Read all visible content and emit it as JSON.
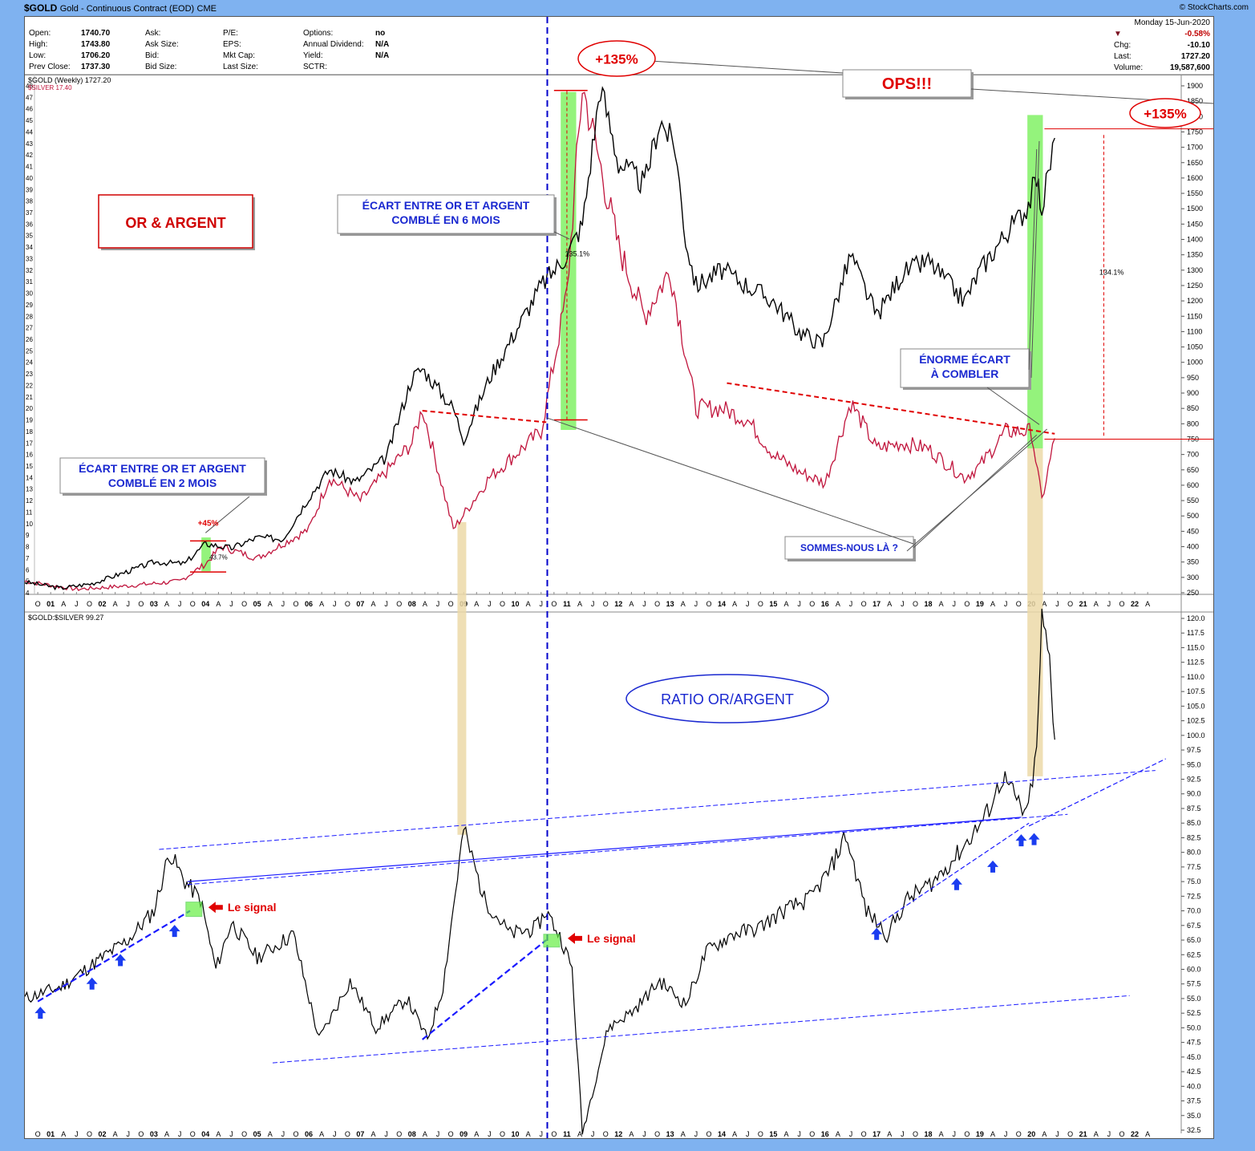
{
  "header": {
    "symbol": "$GOLD",
    "description": "Gold - Continuous Contract (EOD)",
    "exchange": "CME",
    "brand": "© StockCharts.com"
  },
  "quote": {
    "col1": [
      [
        "Open:",
        "1740.70"
      ],
      [
        "High:",
        "1743.80"
      ],
      [
        "Low:",
        "1706.20"
      ],
      [
        "Prev Close:",
        "1737.30"
      ]
    ],
    "col2": [
      [
        "Ask:",
        ""
      ],
      [
        "Ask Size:",
        ""
      ],
      [
        "Bid:",
        ""
      ],
      [
        "Bid Size:",
        ""
      ]
    ],
    "col3": [
      [
        "P/E:",
        ""
      ],
      [
        "EPS:",
        ""
      ],
      [
        "Mkt Cap:",
        ""
      ],
      [
        "Last Size:",
        ""
      ]
    ],
    "col4": [
      [
        "Options:",
        "no"
      ],
      [
        "Annual Dividend:",
        "N/A"
      ],
      [
        "Yield:",
        "N/A"
      ],
      [
        "SCTR:",
        ""
      ]
    ],
    "date": "Monday  15-Jun-2020",
    "pct_change": "-0.58%",
    "right": [
      [
        "Chg:",
        "-10.10"
      ],
      [
        "Last:",
        "1727.20"
      ],
      [
        "Volume:",
        "19,587,600"
      ]
    ]
  },
  "colors": {
    "gold": "#000000",
    "silver": "#c0143c",
    "ratio": "#000000",
    "trend": "#1a1aff",
    "accent_red": "#e00000",
    "green_box": "#66ee44",
    "tan_band": "#ecd9a8"
  },
  "annotations": {
    "title_box": "OR & ARGENT",
    "gap6": [
      "ÉCART ENTRE OR ET ARGENT",
      "COMBLÉ EN 6 MOIS"
    ],
    "gap2": [
      "ÉCART ENTRE OR ET ARGENT",
      "COMBLÉ EN 2 MOIS"
    ],
    "huge_gap": [
      "ÉNORME  ÉCART",
      "À COMBLER"
    ],
    "are_we_there": "SOMMES-NOUS LÀ ?",
    "ops": "OPS!!!",
    "plus135a": "+135%",
    "plus135b": "+135%",
    "plus45": "+45%",
    "pct_1351": "135.1%",
    "pct_437": "43.7%",
    "pct_1341": "134.1%",
    "ratio_title": "RATIO OR/ARGENT",
    "signal1": "Le signal",
    "signal2": "Le signal"
  },
  "chart_data": [
    {
      "type": "line",
      "title": "$GOLD (Weekly) 1727.20",
      "series": [
        {
          "name": "$GOLD (Weekly) 1727.20",
          "x": [
            2000.5,
            2001.2,
            2001.8,
            2002.5,
            2003.0,
            2003.6,
            2004.0,
            2004.5,
            2005.0,
            2005.5,
            2006.0,
            2006.4,
            2006.9,
            2007.5,
            2008.0,
            2008.2,
            2008.8,
            2009.0,
            2009.5,
            2010.0,
            2010.5,
            2011.0,
            2011.3,
            2011.65,
            2012.0,
            2012.5,
            2012.8,
            2013.1,
            2013.3,
            2013.5,
            2014.0,
            2014.5,
            2015.0,
            2015.5,
            2015.95,
            2016.5,
            2017.0,
            2017.5,
            2018.0,
            2018.7,
            2019.0,
            2019.5,
            2019.9,
            2020.1,
            2020.2,
            2020.45
          ],
          "values": [
            285,
            265,
            280,
            320,
            350,
            345,
            410,
            395,
            430,
            425,
            560,
            650,
            610,
            690,
            950,
            980,
            850,
            750,
            950,
            1100,
            1250,
            1350,
            1450,
            1900,
            1650,
            1580,
            1790,
            1700,
            1400,
            1250,
            1300,
            1250,
            1200,
            1100,
            1060,
            1350,
            1150,
            1290,
            1330,
            1200,
            1300,
            1420,
            1500,
            1600,
            1500,
            1730
          ]
        },
        {
          "name": "$SILVER 17.40",
          "x": [
            2000.5,
            2001.5,
            2002.5,
            2003.5,
            2004.0,
            2004.3,
            2005.0,
            2006.0,
            2006.4,
            2007.0,
            2008.0,
            2008.2,
            2008.8,
            2009.5,
            2010.0,
            2010.5,
            2011.0,
            2011.3,
            2011.7,
            2012.0,
            2012.5,
            2013.0,
            2013.5,
            2014.0,
            2014.5,
            2015.0,
            2015.5,
            2016.0,
            2016.5,
            2017.0,
            2017.5,
            2018.0,
            2018.7,
            2019.0,
            2019.5,
            2020.0,
            2020.2,
            2020.45
          ],
          "values": [
            5.0,
            4.3,
            4.6,
            5.0,
            6.5,
            8.0,
            7.0,
            9.5,
            14.0,
            12.0,
            17.0,
            20.0,
            9.5,
            14.0,
            16.0,
            18.0,
            30.0,
            48.0,
            40.0,
            34.0,
            28.0,
            32.0,
            20.0,
            20.0,
            19.0,
            16.0,
            14.5,
            13.5,
            20.5,
            16.5,
            17.0,
            16.5,
            14.0,
            15.0,
            18.0,
            18.0,
            12.0,
            17.4
          ]
        }
      ],
      "ylabel_left": "$SILVER",
      "ylabel_right": "$GOLD",
      "y_left": [
        4,
        48
      ],
      "y_right": [
        250,
        1900
      ],
      "x_range": [
        2000.5,
        2022.9
      ]
    },
    {
      "type": "line",
      "title": "$GOLD:$SILVER 99.27",
      "series": [
        {
          "name": "$GOLD:$SILVER 99.27",
          "x": [
            2000.5,
            2001.2,
            2002.0,
            2002.5,
            2003.0,
            2003.3,
            2003.6,
            2003.9,
            2004.2,
            2004.5,
            2005.0,
            2005.7,
            2006.2,
            2006.8,
            2007.3,
            2007.9,
            2008.3,
            2008.6,
            2009.0,
            2009.4,
            2009.9,
            2010.4,
            2010.6,
            2010.9,
            2011.1,
            2011.3,
            2011.8,
            2012.3,
            2012.8,
            2013.3,
            2013.7,
            2014.2,
            2014.7,
            2015.2,
            2015.7,
            2016.1,
            2016.4,
            2016.8,
            2017.2,
            2017.6,
            2018.1,
            2018.6,
            2019.1,
            2019.45,
            2019.9,
            2020.1,
            2020.2,
            2020.35,
            2020.45
          ],
          "values": [
            55,
            57,
            62,
            65,
            70,
            80,
            75,
            72,
            60,
            68,
            62,
            66,
            48,
            58,
            50,
            55,
            48,
            57,
            84,
            72,
            66,
            67,
            70,
            65,
            60,
            32,
            50,
            53,
            58,
            54,
            63,
            66,
            67,
            70,
            72,
            77,
            83,
            70,
            66,
            72,
            75,
            80,
            86,
            93,
            86,
            97,
            120,
            113,
            99.27
          ]
        }
      ],
      "y_range": [
        32.5,
        120
      ],
      "x_range": [
        2000.5,
        2022.9
      ]
    }
  ],
  "axes": {
    "x_labels": [
      [
        "J",
        2000.5
      ],
      [
        "O",
        2000.75
      ],
      [
        "01",
        2001.0
      ],
      [
        "A",
        2001.25
      ],
      [
        "J",
        2001.5
      ],
      [
        "O",
        2001.75
      ],
      [
        "02",
        2002.0
      ],
      [
        "A",
        2002.25
      ],
      [
        "J",
        2002.5
      ],
      [
        "O",
        2002.75
      ],
      [
        "03",
        2003.0
      ],
      [
        "A",
        2003.25
      ],
      [
        "J",
        2003.5
      ],
      [
        "O",
        2003.75
      ],
      [
        "04",
        2004.0
      ],
      [
        "A",
        2004.25
      ],
      [
        "J",
        2004.5
      ],
      [
        "O",
        2004.75
      ],
      [
        "05",
        2005.0
      ],
      [
        "A",
        2005.25
      ],
      [
        "J",
        2005.5
      ],
      [
        "O",
        2005.75
      ],
      [
        "06",
        2006.0
      ],
      [
        "A",
        2006.25
      ],
      [
        "J",
        2006.5
      ],
      [
        "O",
        2006.75
      ],
      [
        "07",
        2007.0
      ],
      [
        "A",
        2007.25
      ],
      [
        "J",
        2007.5
      ],
      [
        "O",
        2007.75
      ],
      [
        "08",
        2008.0
      ],
      [
        "A",
        2008.25
      ],
      [
        "J",
        2008.5
      ],
      [
        "O",
        2008.75
      ],
      [
        "09",
        2009.0
      ],
      [
        "A",
        2009.25
      ],
      [
        "J",
        2009.5
      ],
      [
        "O",
        2009.75
      ],
      [
        "10",
        2010.0
      ],
      [
        "A",
        2010.25
      ],
      [
        "J",
        2010.5
      ],
      [
        "O",
        2010.75
      ],
      [
        "11",
        2011.0
      ],
      [
        "A",
        2011.25
      ],
      [
        "J",
        2011.5
      ],
      [
        "O",
        2011.75
      ],
      [
        "12",
        2012.0
      ],
      [
        "A",
        2012.25
      ],
      [
        "J",
        2012.5
      ],
      [
        "O",
        2012.75
      ],
      [
        "13",
        2013.0
      ],
      [
        "A",
        2013.25
      ],
      [
        "J",
        2013.5
      ],
      [
        "O",
        2013.75
      ],
      [
        "14",
        2014.0
      ],
      [
        "A",
        2014.25
      ],
      [
        "J",
        2014.5
      ],
      [
        "O",
        2014.75
      ],
      [
        "15",
        2015.0
      ],
      [
        "A",
        2015.25
      ],
      [
        "J",
        2015.5
      ],
      [
        "O",
        2015.75
      ],
      [
        "16",
        2016.0
      ],
      [
        "A",
        2016.25
      ],
      [
        "J",
        2016.5
      ],
      [
        "O",
        2016.75
      ],
      [
        "17",
        2017.0
      ],
      [
        "A",
        2017.25
      ],
      [
        "J",
        2017.5
      ],
      [
        "O",
        2017.75
      ],
      [
        "18",
        2018.0
      ],
      [
        "A",
        2018.25
      ],
      [
        "J",
        2018.5
      ],
      [
        "O",
        2018.75
      ],
      [
        "19",
        2019.0
      ],
      [
        "A",
        2019.25
      ],
      [
        "J",
        2019.5
      ],
      [
        "O",
        2019.75
      ],
      [
        "20",
        2020.0
      ],
      [
        "A",
        2020.25
      ],
      [
        "J",
        2020.5
      ],
      [
        "O",
        2020.75
      ],
      [
        "21",
        2021.0
      ],
      [
        "A",
        2021.25
      ],
      [
        "J",
        2021.5
      ],
      [
        "O",
        2021.75
      ],
      [
        "22",
        2022.0
      ],
      [
        "A",
        2022.25
      ]
    ],
    "left_ticks": [
      "4",
      "5",
      "6",
      "7",
      "8",
      "9",
      "10",
      "11",
      "12",
      "13",
      "14",
      "15",
      "16",
      "17",
      "18",
      "19",
      "20",
      "21",
      "22",
      "23",
      "24",
      "25",
      "26",
      "27",
      "28",
      "29",
      "30",
      "31",
      "32",
      "33",
      "34",
      "35",
      "36",
      "37",
      "38",
      "39",
      "40",
      "41",
      "42",
      "43",
      "44",
      "45",
      "46",
      "47",
      "48"
    ],
    "right_ticks_top": [
      "250",
      "300",
      "350",
      "400",
      "450",
      "500",
      "550",
      "600",
      "650",
      "700",
      "750",
      "800",
      "850",
      "900",
      "950",
      "1000",
      "1050",
      "1100",
      "1150",
      "1200",
      "1250",
      "1300",
      "1350",
      "1400",
      "1450",
      "1500",
      "1550",
      "1600",
      "1650",
      "1700",
      "1750",
      "1800",
      "1850",
      "1900"
    ],
    "right_ticks_bottom": [
      "32.5",
      "35.0",
      "37.5",
      "40.0",
      "42.5",
      "45.0",
      "47.5",
      "50.0",
      "52.5",
      "55.0",
      "57.5",
      "60.0",
      "62.5",
      "65.0",
      "67.5",
      "70.0",
      "72.5",
      "75.0",
      "77.5",
      "80.0",
      "82.5",
      "85.0",
      "87.5",
      "90.0",
      "92.5",
      "95.0",
      "97.5",
      "100.0",
      "102.5",
      "105.0",
      "107.5",
      "110.0",
      "112.5",
      "115.0",
      "117.5",
      "120.0"
    ]
  }
}
